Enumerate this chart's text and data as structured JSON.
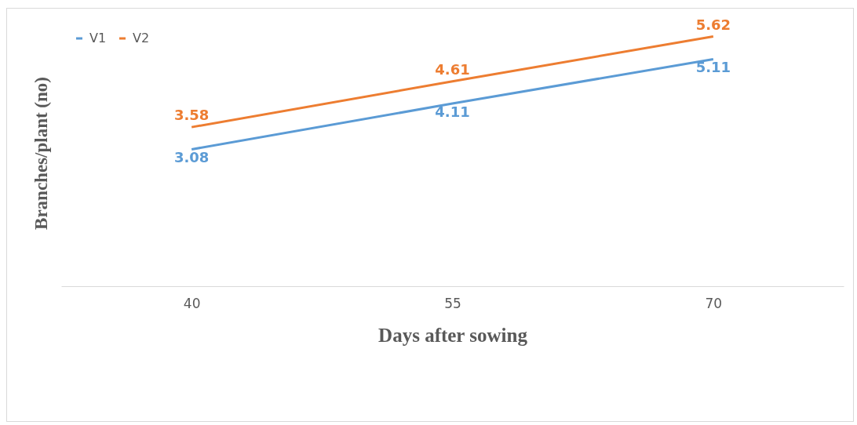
{
  "chart_data": {
    "type": "line",
    "xlabel": "Days after sowing",
    "ylabel": "Branches/plant (no)",
    "categories": [
      "40",
      "55",
      "70"
    ],
    "series": [
      {
        "name": "V1",
        "color": "#5b9bd5",
        "values": [
          3.08,
          4.11,
          5.11
        ]
      },
      {
        "name": "V2",
        "color": "#ed7d31",
        "values": [
          3.58,
          4.61,
          5.62
        ]
      }
    ],
    "data_labels": true,
    "legend": "top left",
    "grid": false,
    "marker": "none",
    "line_style": "solid"
  }
}
